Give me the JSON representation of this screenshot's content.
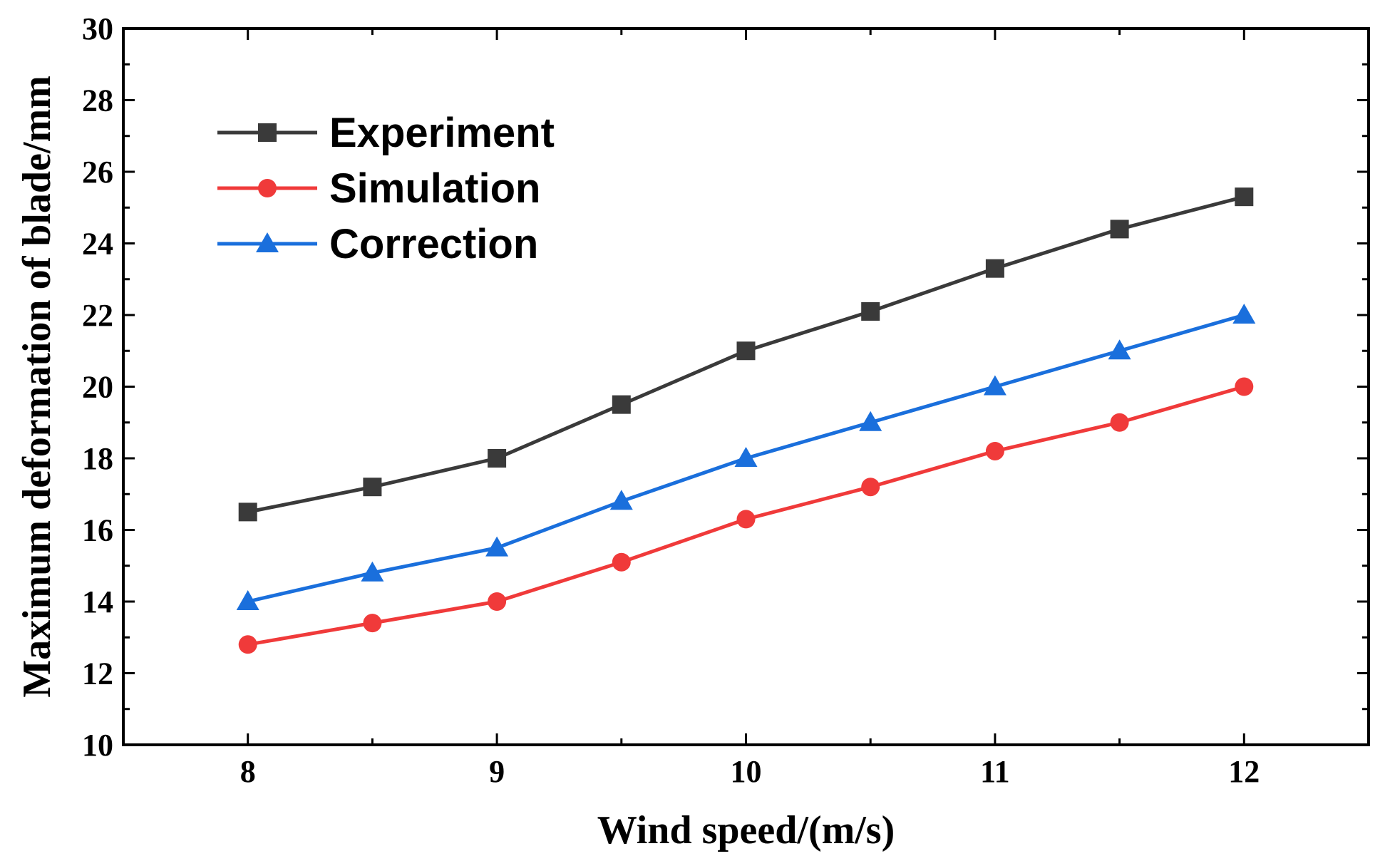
{
  "chart_data": {
    "type": "line",
    "xlabel": "Wind speed/(m/s)",
    "ylabel": "Maximum deformation of blade/mm",
    "xlim": [
      7.5,
      12.5
    ],
    "ylim": [
      10,
      30
    ],
    "x_ticks": [
      8,
      9,
      10,
      11,
      12
    ],
    "x_tick_labels": [
      "8",
      "9",
      "10",
      "11",
      "12"
    ],
    "y_ticks": [
      10,
      12,
      14,
      16,
      18,
      20,
      22,
      24,
      26,
      28,
      30
    ],
    "y_tick_labels": [
      "10",
      "12",
      "14",
      "16",
      "18",
      "20",
      "22",
      "24",
      "26",
      "28",
      "30"
    ],
    "legend_position": "top-left",
    "x": [
      8,
      8.5,
      9,
      9.5,
      10,
      10.5,
      11,
      11.5,
      12
    ],
    "series": [
      {
        "name": "Experiment",
        "color": "#3a3a3a",
        "marker": "square",
        "values": [
          16.5,
          17.2,
          18.0,
          19.5,
          21.0,
          22.1,
          23.3,
          24.4,
          25.3
        ]
      },
      {
        "name": "Simulation",
        "color": "#f03a3a",
        "marker": "circle",
        "values": [
          12.8,
          13.4,
          14.0,
          15.1,
          16.3,
          17.2,
          18.2,
          19.0,
          20.0
        ]
      },
      {
        "name": "Correction",
        "color": "#1a6fdc",
        "marker": "triangle",
        "values": [
          14.0,
          14.8,
          15.5,
          16.8,
          18.0,
          19.0,
          20.0,
          21.0,
          22.0
        ]
      }
    ]
  }
}
